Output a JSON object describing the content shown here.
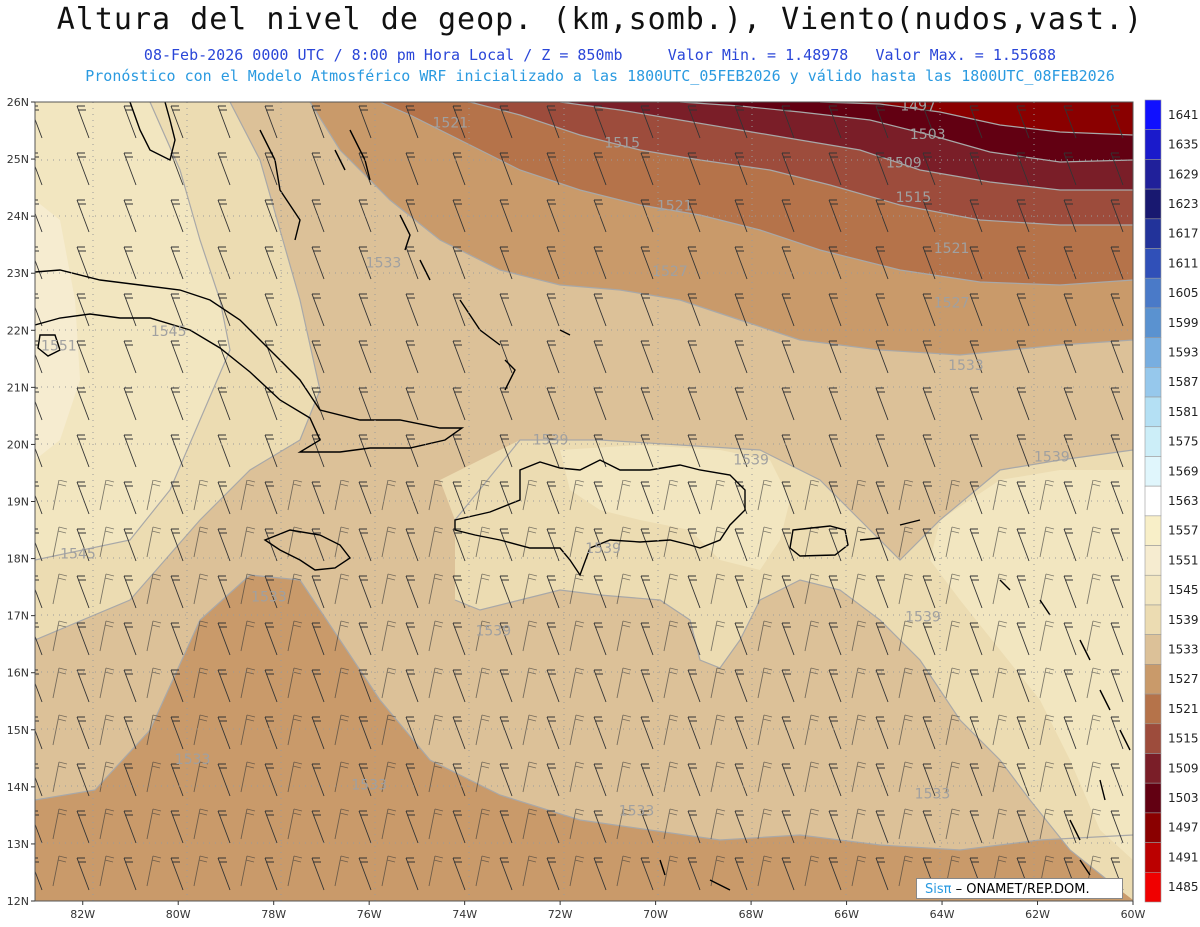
{
  "title": "Altura del nivel de geop. (km,somb.), Viento(nudos,vast.)",
  "subtitle_line1": {
    "datetime": "08-Feb-2026  0000 UTC / 8:00 pm Hora Local / Z = 850mb",
    "min": "Valor Min. = 1.48978",
    "max": "Valor Max. = 1.55688"
  },
  "subtitle_line2": "Pronóstico con el Modelo Atmosférico WRF inicializado a las 1800UTC_05FEB2026 y válido hasta las  1800UTC_08FEB2026",
  "credit": {
    "logo": "Sisπ",
    "text": "– ONAMET/REP.DOM."
  },
  "map": {
    "lon_range": [
      -83,
      -60
    ],
    "lat_range": [
      12,
      26
    ],
    "lon_ticks": [
      "82W",
      "80W",
      "78W",
      "76W",
      "74W",
      "72W",
      "70W",
      "68W",
      "66W",
      "64W",
      "62W",
      "60W"
    ],
    "lat_ticks": [
      "12N",
      "13N",
      "14N",
      "15N",
      "16N",
      "17N",
      "18N",
      "19N",
      "20N",
      "21N",
      "22N",
      "23N",
      "24N",
      "25N",
      "26N"
    ],
    "contour_labels": [
      {
        "text": "1497",
        "lon": -64.5,
        "lat": 25.85
      },
      {
        "text": "1503",
        "lon": -64.3,
        "lat": 25.35
      },
      {
        "text": "1509",
        "lon": -64.8,
        "lat": 24.85
      },
      {
        "text": "1515",
        "lon": -70.7,
        "lat": 25.2
      },
      {
        "text": "1515",
        "lon": -64.6,
        "lat": 24.25
      },
      {
        "text": "1521",
        "lon": -74.3,
        "lat": 25.55
      },
      {
        "text": "1521",
        "lon": -69.6,
        "lat": 24.1
      },
      {
        "text": "1521",
        "lon": -63.8,
        "lat": 23.35
      },
      {
        "text": "1527",
        "lon": -69.7,
        "lat": 22.95
      },
      {
        "text": "1527",
        "lon": -63.8,
        "lat": 22.4
      },
      {
        "text": "1533",
        "lon": -63.5,
        "lat": 21.3
      },
      {
        "text": "1533",
        "lon": -75.7,
        "lat": 23.1
      },
      {
        "text": "1539",
        "lon": -72.2,
        "lat": 20.0
      },
      {
        "text": "1539",
        "lon": -68.0,
        "lat": 19.65
      },
      {
        "text": "1539",
        "lon": -61.7,
        "lat": 19.7
      },
      {
        "text": "1539",
        "lon": -71.1,
        "lat": 18.1
      },
      {
        "text": "1539",
        "lon": -73.4,
        "lat": 16.65
      },
      {
        "text": "1539",
        "lon": -64.4,
        "lat": 16.9
      },
      {
        "text": "1545",
        "lon": -80.2,
        "lat": 21.9
      },
      {
        "text": "1545",
        "lon": -82.1,
        "lat": 18.0
      },
      {
        "text": "1551",
        "lon": -82.5,
        "lat": 21.65
      },
      {
        "text": "1533",
        "lon": -79.7,
        "lat": 14.4
      },
      {
        "text": "1533",
        "lon": -76.0,
        "lat": 13.95
      },
      {
        "text": "1533",
        "lon": -70.4,
        "lat": 13.5
      },
      {
        "text": "1533",
        "lon": -64.2,
        "lat": 13.8
      },
      {
        "text": "1533",
        "lon": -78.1,
        "lat": 17.25
      }
    ]
  },
  "colorbar": {
    "labels": [
      "1641",
      "1635",
      "1629",
      "1623",
      "1617",
      "1611",
      "1605",
      "1599",
      "1593",
      "1587",
      "1581",
      "1575",
      "1569",
      "1563",
      "1557",
      "1551",
      "1545",
      "1539",
      "1533",
      "1527",
      "1521",
      "1515",
      "1509",
      "1503",
      "1497",
      "1491",
      "1485"
    ],
    "colors": [
      "#1010ff",
      "#1a1acb",
      "#20209a",
      "#181870",
      "#22339a",
      "#3050b8",
      "#4a7ac8",
      "#5a92d0",
      "#78aee0",
      "#96c8ec",
      "#b4e0f4",
      "#cceef8",
      "#e0f6fc",
      "#ffffff",
      "#f8efc8",
      "#f6ecd0",
      "#f2e6c0",
      "#ecdcb2",
      "#dcc198",
      "#c99a6a",
      "#b5734a",
      "#9d4c3c",
      "#7a1e28",
      "#620012",
      "#8a0000",
      "#bb0000",
      "#f00000"
    ]
  }
}
